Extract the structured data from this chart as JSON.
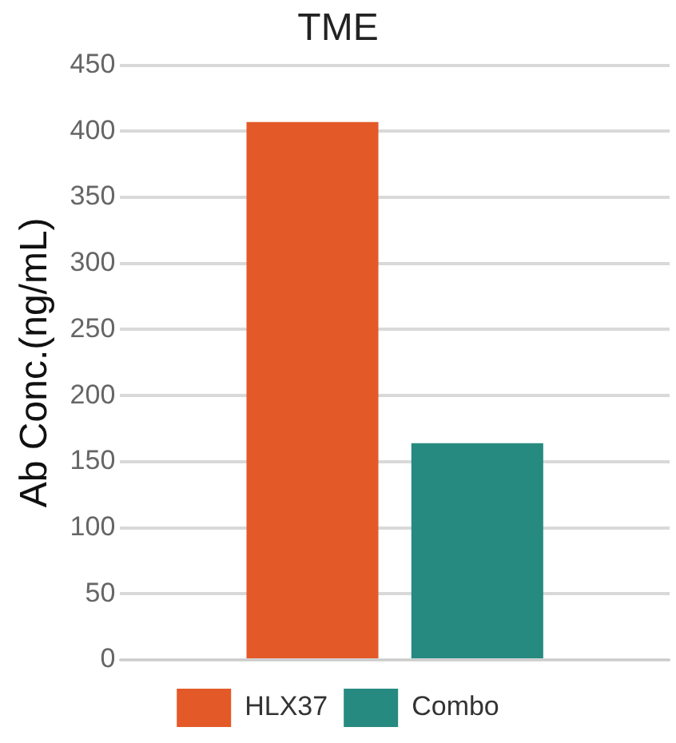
{
  "chart_data": {
    "type": "bar",
    "title": "TME",
    "ylabel": "Ab Conc.(ng/mL)",
    "categories": [
      null
    ],
    "series": [
      {
        "name": "HLX37",
        "color": "#e35a28",
        "values": [
          407
        ]
      },
      {
        "name": "Combo",
        "color": "#268a80",
        "values": [
          164
        ]
      }
    ],
    "ylim": [
      0,
      450
    ],
    "yticks": [
      0,
      50,
      100,
      150,
      200,
      250,
      300,
      350,
      400,
      450
    ],
    "grid": "y",
    "legend": "bottom"
  }
}
